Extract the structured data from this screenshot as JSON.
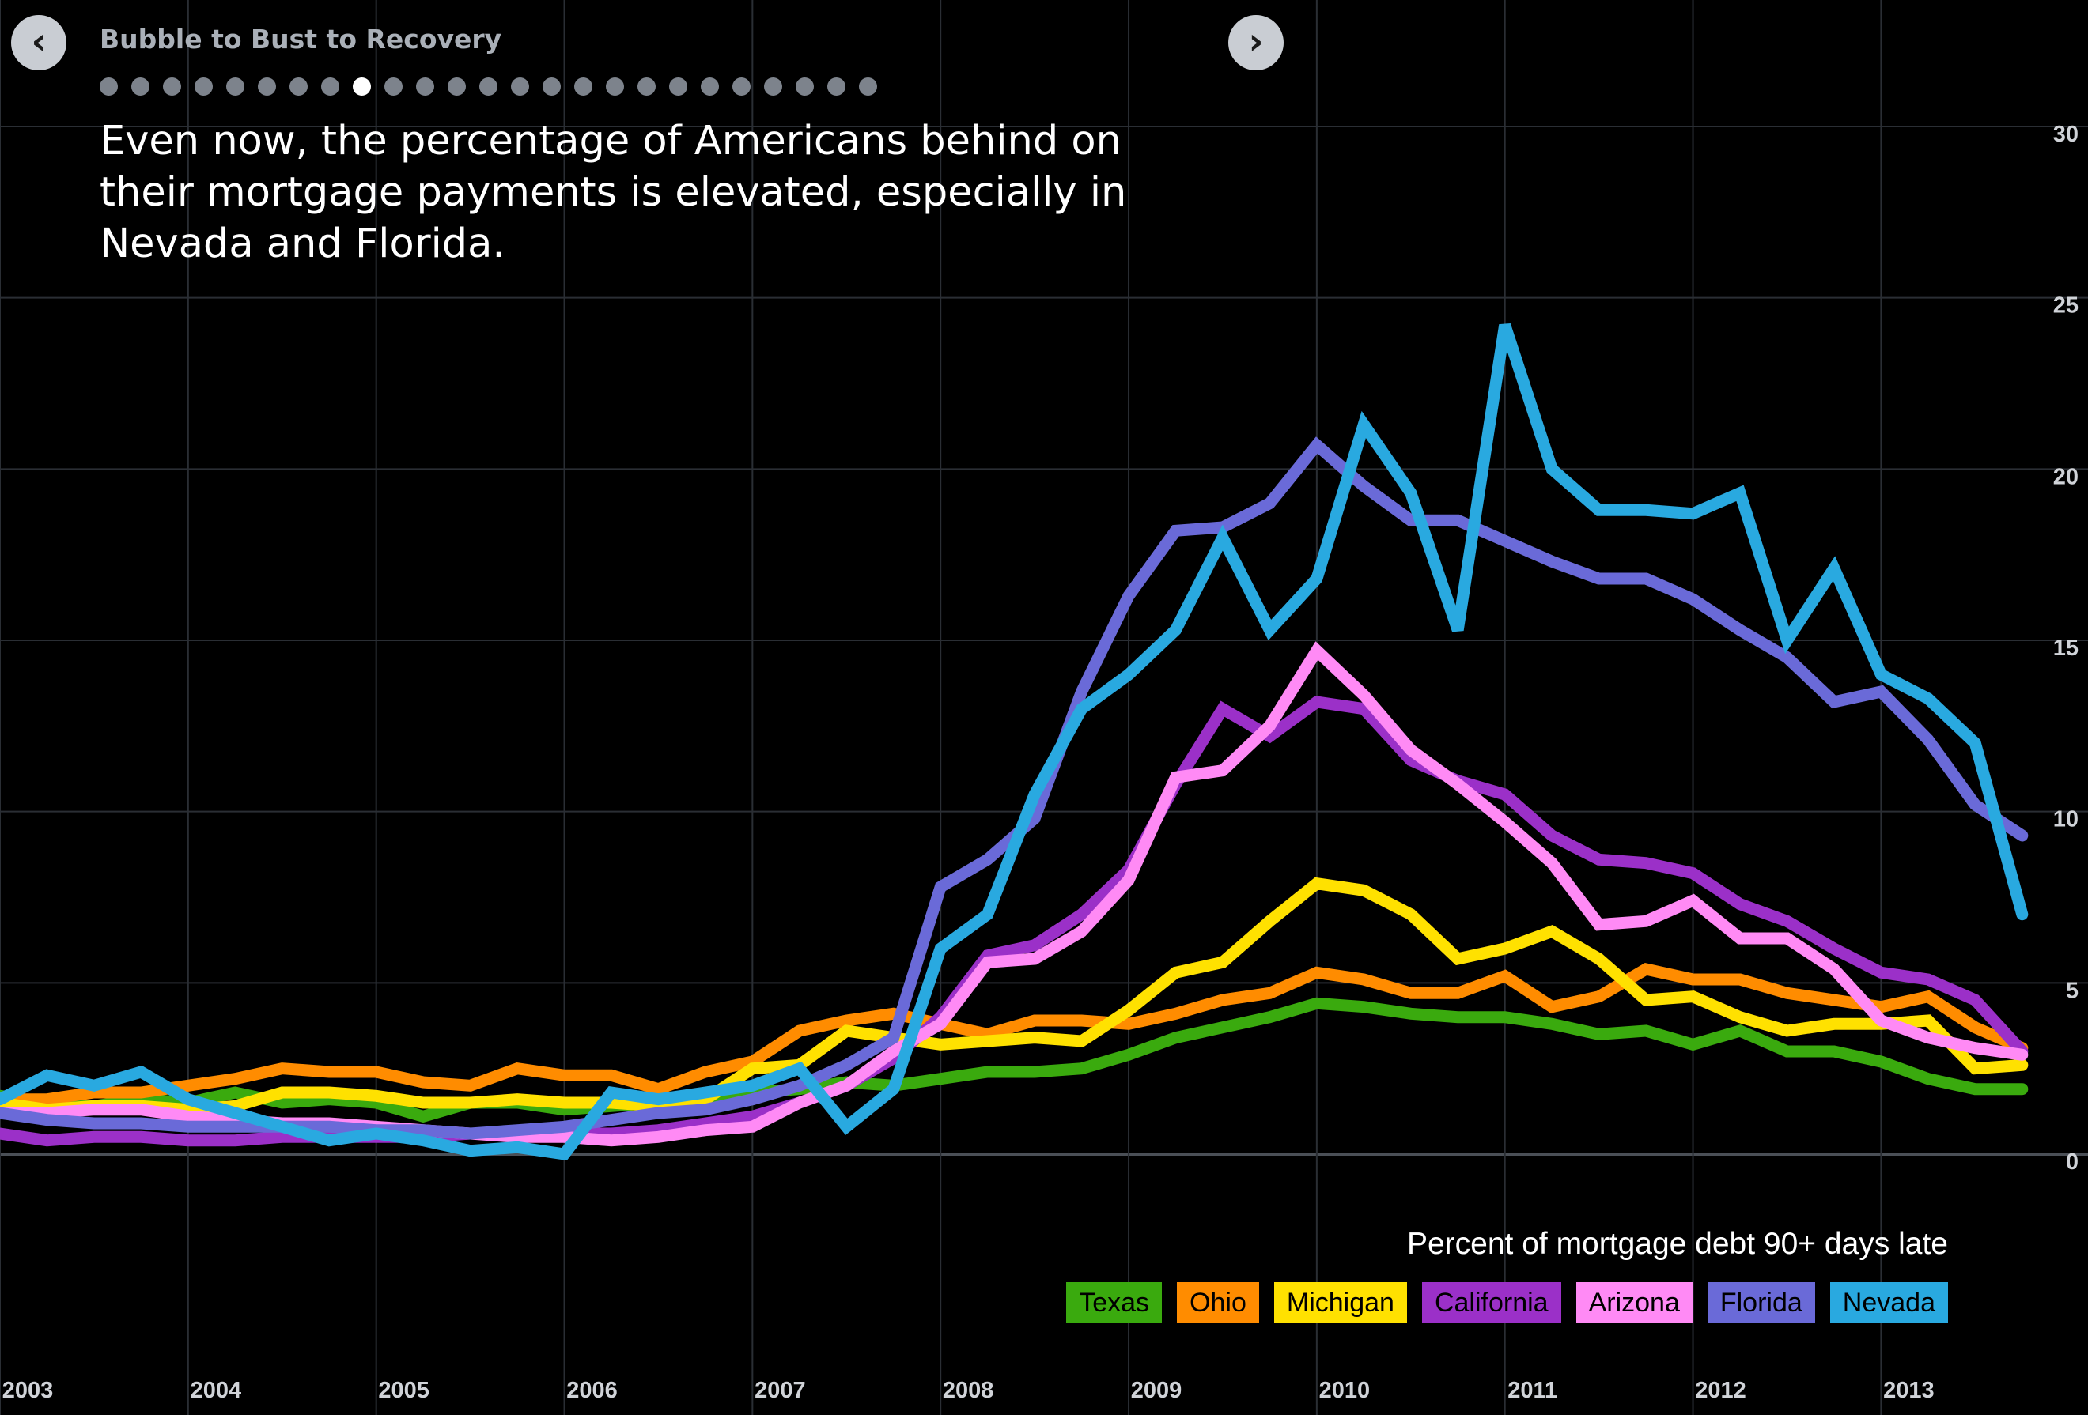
{
  "nav": {
    "prev_icon": "‹",
    "next_icon": "›",
    "story_title": "Bubble to Bust to Recovery",
    "slide_count": 25,
    "active_slide": 8
  },
  "headline": "Even now, the percentage of Americans behind on their mortgage payments is elevated, especially in Nevada and Florida.",
  "chart_data": {
    "type": "line",
    "ylabel": "Percent of mortgage debt 90+ days late",
    "ylim": [
      0,
      30
    ],
    "yticks": [
      0,
      5,
      10,
      15,
      20,
      25,
      30
    ],
    "xlim": [
      2003.0,
      2014.1
    ],
    "xticks": [
      2003,
      2004,
      2005,
      2006,
      2007,
      2008,
      2009,
      2010,
      2011,
      2012,
      2013
    ],
    "grid": true,
    "legend_position": "bottom-right",
    "x": [
      2003.0,
      2003.25,
      2003.5,
      2003.75,
      2004.0,
      2004.25,
      2004.5,
      2004.75,
      2005.0,
      2005.25,
      2005.5,
      2005.75,
      2006.0,
      2006.25,
      2006.5,
      2006.75,
      2007.0,
      2007.25,
      2007.5,
      2007.75,
      2008.0,
      2008.25,
      2008.5,
      2008.75,
      2009.0,
      2009.25,
      2009.5,
      2009.75,
      2010.0,
      2010.25,
      2010.5,
      2010.75,
      2011.0,
      2011.25,
      2011.5,
      2011.75,
      2012.0,
      2012.25,
      2012.5,
      2012.75,
      2013.0,
      2013.25,
      2013.5,
      2013.75
    ],
    "series": [
      {
        "name": "Texas",
        "color": "#3aaa0e",
        "values": [
          1.7,
          1.5,
          1.4,
          1.6,
          1.5,
          1.8,
          1.5,
          1.6,
          1.5,
          1.1,
          1.5,
          1.5,
          1.3,
          1.4,
          1.5,
          1.5,
          1.8,
          1.9,
          2.1,
          2.0,
          2.2,
          2.4,
          2.4,
          2.5,
          2.9,
          3.4,
          3.7,
          4.0,
          4.4,
          4.3,
          4.1,
          4.0,
          4.0,
          3.8,
          3.5,
          3.6,
          3.2,
          3.6,
          3.0,
          3.0,
          2.7,
          2.2,
          1.9,
          1.9
        ]
      },
      {
        "name": "Ohio",
        "color": "#ff8c00",
        "values": [
          1.6,
          1.6,
          1.8,
          1.8,
          2.0,
          2.2,
          2.5,
          2.4,
          2.4,
          2.1,
          2.0,
          2.5,
          2.3,
          2.3,
          1.9,
          2.4,
          2.7,
          3.6,
          3.9,
          4.1,
          3.8,
          3.5,
          3.9,
          3.9,
          3.8,
          4.1,
          4.5,
          4.7,
          5.3,
          5.1,
          4.7,
          4.7,
          5.2,
          4.3,
          4.6,
          5.4,
          5.1,
          5.1,
          4.7,
          4.5,
          4.3,
          4.6,
          3.7,
          3.1
        ]
      },
      {
        "name": "Michigan",
        "color": "#ffe100",
        "values": [
          1.5,
          1.3,
          1.4,
          1.4,
          1.3,
          1.4,
          1.8,
          1.8,
          1.7,
          1.5,
          1.5,
          1.6,
          1.5,
          1.5,
          1.4,
          1.6,
          2.5,
          2.6,
          3.6,
          3.4,
          3.2,
          3.3,
          3.4,
          3.3,
          4.2,
          5.3,
          5.6,
          6.8,
          7.9,
          7.7,
          7.0,
          5.7,
          6.0,
          6.5,
          5.7,
          4.5,
          4.6,
          4.0,
          3.6,
          3.8,
          3.8,
          3.9,
          2.5,
          2.6
        ]
      },
      {
        "name": "California",
        "color": "#9b30c8",
        "values": [
          0.6,
          0.4,
          0.5,
          0.5,
          0.4,
          0.4,
          0.5,
          0.5,
          0.5,
          0.5,
          0.6,
          0.6,
          0.6,
          0.6,
          0.7,
          0.9,
          1.1,
          1.5,
          2.0,
          2.8,
          4.0,
          5.8,
          6.1,
          7.0,
          8.3,
          10.8,
          13.0,
          12.2,
          13.2,
          13.0,
          11.5,
          10.9,
          10.5,
          9.3,
          8.6,
          8.5,
          8.2,
          7.3,
          6.8,
          6.0,
          5.3,
          5.1,
          4.5,
          3.0
        ]
      },
      {
        "name": "Arizona",
        "color": "#ff8af5",
        "values": [
          1.2,
          1.2,
          1.3,
          1.3,
          1.1,
          1.0,
          0.9,
          0.9,
          0.8,
          0.7,
          0.6,
          0.5,
          0.5,
          0.4,
          0.5,
          0.7,
          0.8,
          1.5,
          2.0,
          3.0,
          3.8,
          5.6,
          5.7,
          6.5,
          8.0,
          11.0,
          11.2,
          12.5,
          14.7,
          13.4,
          11.8,
          10.8,
          9.7,
          8.5,
          6.7,
          6.8,
          7.4,
          6.3,
          6.3,
          5.4,
          3.9,
          3.4,
          3.1,
          2.9
        ]
      },
      {
        "name": "Florida",
        "color": "#6a6ad8",
        "values": [
          1.2,
          1.0,
          0.9,
          0.9,
          0.8,
          0.8,
          0.8,
          0.8,
          0.7,
          0.7,
          0.6,
          0.7,
          0.8,
          1.0,
          1.2,
          1.3,
          1.6,
          2.0,
          2.6,
          3.4,
          7.8,
          8.6,
          9.8,
          13.5,
          16.3,
          18.2,
          18.3,
          19.0,
          20.7,
          19.5,
          18.5,
          18.5,
          17.9,
          17.3,
          16.8,
          16.8,
          16.2,
          15.3,
          14.5,
          13.2,
          13.5,
          12.1,
          10.2,
          9.3
        ]
      },
      {
        "name": "Nevada",
        "color": "#29a9e0",
        "values": [
          1.6,
          2.3,
          2.0,
          2.4,
          1.6,
          1.2,
          0.8,
          0.4,
          0.6,
          0.4,
          0.1,
          0.2,
          0.0,
          1.8,
          1.6,
          1.8,
          2.0,
          2.5,
          0.8,
          1.9,
          6.0,
          7.0,
          10.5,
          13.0,
          14.0,
          15.3,
          18.0,
          15.3,
          16.8,
          21.3,
          19.3,
          15.3,
          24.2,
          20.0,
          18.8,
          18.8,
          18.7,
          19.3,
          15.0,
          17.1,
          14.0,
          13.3,
          12.0,
          7.0
        ]
      }
    ]
  }
}
